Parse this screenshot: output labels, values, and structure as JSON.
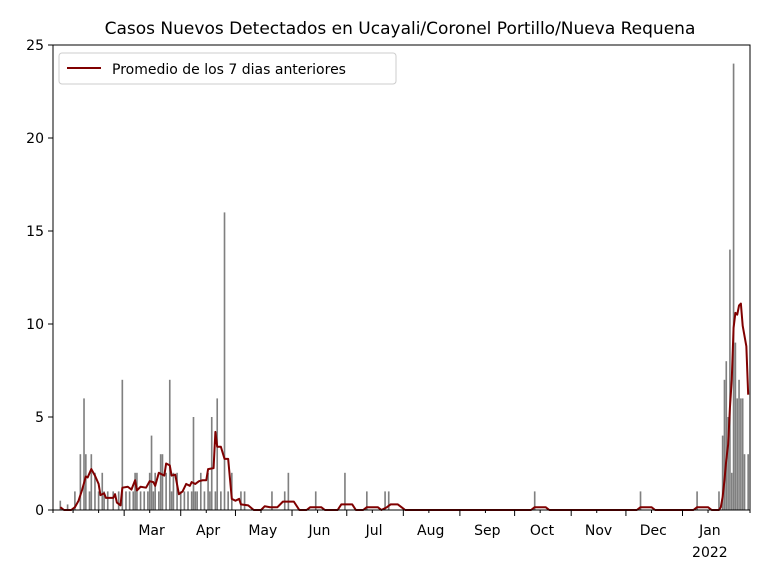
{
  "chart_data": {
    "type": "bar",
    "title": "Casos Nuevos Detectados en Ucayali/Coronel Portillo/Nueva Requena",
    "xlabel": "",
    "ylabel": "",
    "ylim": [
      0,
      25
    ],
    "yticks": [
      0,
      5,
      10,
      15,
      20,
      25
    ],
    "xlim": [
      "2021-01-21",
      "2022-02-07"
    ],
    "month_ticks": [
      {
        "date": "2021-03-01",
        "label": "Mar",
        "sublabel": ""
      },
      {
        "date": "2021-04-01",
        "label": "Apr",
        "sublabel": ""
      },
      {
        "date": "2021-05-01",
        "label": "May",
        "sublabel": ""
      },
      {
        "date": "2021-06-01",
        "label": "Jun",
        "sublabel": ""
      },
      {
        "date": "2021-07-01",
        "label": "Jul",
        "sublabel": ""
      },
      {
        "date": "2021-08-01",
        "label": "Aug",
        "sublabel": ""
      },
      {
        "date": "2021-09-01",
        "label": "Sep",
        "sublabel": ""
      },
      {
        "date": "2021-10-01",
        "label": "Oct",
        "sublabel": ""
      },
      {
        "date": "2021-11-01",
        "label": "Nov",
        "sublabel": ""
      },
      {
        "date": "2021-12-01",
        "label": "Dec",
        "sublabel": ""
      },
      {
        "date": "2022-01-01",
        "label": "Jan",
        "sublabel": "2022"
      }
    ],
    "minor_ticks": [
      "2021-01-21",
      "2021-02-01",
      "2021-02-15",
      "2021-03-15",
      "2021-04-15",
      "2021-05-15",
      "2021-06-15",
      "2021-07-15",
      "2021-08-15",
      "2021-09-15",
      "2021-10-15",
      "2021-11-15",
      "2021-12-15",
      "2022-01-15",
      "2022-02-07"
    ],
    "bar_series": {
      "name": "",
      "color": "#808080",
      "points": [
        [
          "2021-01-25",
          0.5
        ],
        [
          "2021-01-29",
          0.3
        ],
        [
          "2021-02-02",
          1
        ],
        [
          "2021-02-05",
          3
        ],
        [
          "2021-02-07",
          6
        ],
        [
          "2021-02-08",
          3
        ],
        [
          "2021-02-10",
          1
        ],
        [
          "2021-02-11",
          3
        ],
        [
          "2021-02-13",
          2
        ],
        [
          "2021-02-15",
          1
        ],
        [
          "2021-02-17",
          2
        ],
        [
          "2021-02-18",
          1
        ],
        [
          "2021-02-20",
          1
        ],
        [
          "2021-02-23",
          1
        ],
        [
          "2021-02-26",
          1
        ],
        [
          "2021-02-28",
          7
        ],
        [
          "2021-03-02",
          1
        ],
        [
          "2021-03-04",
          1
        ],
        [
          "2021-03-06",
          1
        ],
        [
          "2021-03-07",
          2
        ],
        [
          "2021-03-08",
          2
        ],
        [
          "2021-03-10",
          1
        ],
        [
          "2021-03-12",
          1
        ],
        [
          "2021-03-14",
          1
        ],
        [
          "2021-03-15",
          2
        ],
        [
          "2021-03-16",
          4
        ],
        [
          "2021-03-17",
          1
        ],
        [
          "2021-03-18",
          2
        ],
        [
          "2021-03-20",
          1
        ],
        [
          "2021-03-21",
          3
        ],
        [
          "2021-03-22",
          3
        ],
        [
          "2021-03-24",
          2
        ],
        [
          "2021-03-26",
          7
        ],
        [
          "2021-03-27",
          1
        ],
        [
          "2021-03-28",
          2
        ],
        [
          "2021-03-30",
          2
        ],
        [
          "2021-04-01",
          1
        ],
        [
          "2021-04-03",
          1
        ],
        [
          "2021-04-05",
          1
        ],
        [
          "2021-04-07",
          1
        ],
        [
          "2021-04-08",
          5
        ],
        [
          "2021-04-09",
          1
        ],
        [
          "2021-04-10",
          1
        ],
        [
          "2021-04-12",
          2
        ],
        [
          "2021-04-14",
          1
        ],
        [
          "2021-04-16",
          2
        ],
        [
          "2021-04-17",
          1
        ],
        [
          "2021-04-18",
          5
        ],
        [
          "2021-04-20",
          1
        ],
        [
          "2021-04-21",
          6
        ],
        [
          "2021-04-23",
          1
        ],
        [
          "2021-04-25",
          16
        ],
        [
          "2021-04-27",
          1
        ],
        [
          "2021-04-29",
          2
        ],
        [
          "2021-05-04",
          1
        ],
        [
          "2021-05-06",
          1
        ],
        [
          "2021-05-21",
          1
        ],
        [
          "2021-05-28",
          1
        ],
        [
          "2021-05-30",
          2
        ],
        [
          "2021-06-14",
          1
        ],
        [
          "2021-06-30",
          2
        ],
        [
          "2021-07-12",
          1
        ],
        [
          "2021-07-22",
          1
        ],
        [
          "2021-07-24",
          1
        ],
        [
          "2021-10-12",
          1
        ],
        [
          "2021-12-09",
          1
        ],
        [
          "2022-01-09",
          1
        ],
        [
          "2022-01-21",
          1
        ],
        [
          "2022-01-23",
          4
        ],
        [
          "2022-01-24",
          7
        ],
        [
          "2022-01-25",
          8
        ],
        [
          "2022-01-26",
          5
        ],
        [
          "2022-01-27",
          14
        ],
        [
          "2022-01-28",
          2
        ],
        [
          "2022-01-29",
          24
        ],
        [
          "2022-01-30",
          9
        ],
        [
          "2022-01-31",
          6
        ],
        [
          "2022-02-01",
          7
        ],
        [
          "2022-02-02",
          6
        ],
        [
          "2022-02-03",
          6
        ],
        [
          "2022-02-04",
          3
        ],
        [
          "2022-02-06",
          3
        ]
      ]
    },
    "line_series": {
      "name": "Promedio de los 7 dias anteriores",
      "color": "#800000",
      "points": [
        [
          "2021-01-25",
          0.15
        ],
        [
          "2021-01-27",
          0.0
        ],
        [
          "2021-01-31",
          0.0
        ],
        [
          "2021-02-02",
          0.15
        ],
        [
          "2021-02-04",
          0.5
        ],
        [
          "2021-02-06",
          1.1
        ],
        [
          "2021-02-08",
          1.8
        ],
        [
          "2021-02-09",
          1.75
        ],
        [
          "2021-02-11",
          2.2
        ],
        [
          "2021-02-13",
          1.85
        ],
        [
          "2021-02-15",
          1.4
        ],
        [
          "2021-02-16",
          0.8
        ],
        [
          "2021-02-18",
          0.9
        ],
        [
          "2021-02-19",
          0.65
        ],
        [
          "2021-02-23",
          0.65
        ],
        [
          "2021-02-24",
          0.85
        ],
        [
          "2021-02-25",
          0.4
        ],
        [
          "2021-02-27",
          0.25
        ],
        [
          "2021-02-28",
          1.2
        ],
        [
          "2021-03-03",
          1.25
        ],
        [
          "2021-03-05",
          1.1
        ],
        [
          "2021-03-07",
          1.6
        ],
        [
          "2021-03-08",
          1.05
        ],
        [
          "2021-03-10",
          1.25
        ],
        [
          "2021-03-13",
          1.2
        ],
        [
          "2021-03-15",
          1.55
        ],
        [
          "2021-03-17",
          1.5
        ],
        [
          "2021-03-18",
          1.3
        ],
        [
          "2021-03-20",
          2.0
        ],
        [
          "2021-03-23",
          1.85
        ],
        [
          "2021-03-24",
          2.5
        ],
        [
          "2021-03-26",
          2.4
        ],
        [
          "2021-03-27",
          1.85
        ],
        [
          "2021-03-29",
          1.9
        ],
        [
          "2021-03-31",
          0.85
        ],
        [
          "2021-04-02",
          1.0
        ],
        [
          "2021-04-04",
          1.4
        ],
        [
          "2021-04-06",
          1.3
        ],
        [
          "2021-04-07",
          1.5
        ],
        [
          "2021-04-09",
          1.4
        ],
        [
          "2021-04-11",
          1.55
        ],
        [
          "2021-04-13",
          1.6
        ],
        [
          "2021-04-15",
          1.6
        ],
        [
          "2021-04-16",
          2.2
        ],
        [
          "2021-04-19",
          2.25
        ],
        [
          "2021-04-20",
          4.2
        ],
        [
          "2021-04-21",
          3.4
        ],
        [
          "2021-04-23",
          3.4
        ],
        [
          "2021-04-25",
          2.75
        ],
        [
          "2021-04-27",
          2.75
        ],
        [
          "2021-04-29",
          0.6
        ],
        [
          "2021-05-01",
          0.5
        ],
        [
          "2021-05-03",
          0.6
        ],
        [
          "2021-05-04",
          0.3
        ],
        [
          "2021-05-08",
          0.25
        ],
        [
          "2021-05-11",
          0.0
        ],
        [
          "2021-05-15",
          0.0
        ],
        [
          "2021-05-17",
          0.2
        ],
        [
          "2021-05-20",
          0.15
        ],
        [
          "2021-05-24",
          0.15
        ],
        [
          "2021-05-27",
          0.45
        ],
        [
          "2021-06-02",
          0.45
        ],
        [
          "2021-06-05",
          0.0
        ],
        [
          "2021-06-09",
          0.0
        ],
        [
          "2021-06-11",
          0.15
        ],
        [
          "2021-06-17",
          0.15
        ],
        [
          "2021-06-19",
          0.0
        ],
        [
          "2021-06-26",
          0.0
        ],
        [
          "2021-06-28",
          0.3
        ],
        [
          "2021-07-04",
          0.3
        ],
        [
          "2021-07-06",
          0.0
        ],
        [
          "2021-07-10",
          0.0
        ],
        [
          "2021-07-12",
          0.15
        ],
        [
          "2021-07-18",
          0.15
        ],
        [
          "2021-07-20",
          0.0
        ],
        [
          "2021-07-23",
          0.15
        ],
        [
          "2021-07-25",
          0.3
        ],
        [
          "2021-07-29",
          0.3
        ],
        [
          "2021-07-31",
          0.15
        ],
        [
          "2021-08-02",
          0.0
        ],
        [
          "2021-10-10",
          0.0
        ],
        [
          "2021-10-12",
          0.15
        ],
        [
          "2021-10-18",
          0.15
        ],
        [
          "2021-10-20",
          0.0
        ],
        [
          "2021-12-07",
          0.0
        ],
        [
          "2021-12-09",
          0.15
        ],
        [
          "2021-12-15",
          0.15
        ],
        [
          "2021-12-17",
          0.0
        ],
        [
          "2022-01-07",
          0.0
        ],
        [
          "2022-01-09",
          0.15
        ],
        [
          "2022-01-15",
          0.15
        ],
        [
          "2022-01-17",
          0.0
        ],
        [
          "2022-01-21",
          0.0
        ],
        [
          "2022-01-22",
          0.15
        ],
        [
          "2022-01-23",
          0.7
        ],
        [
          "2022-01-24",
          1.6
        ],
        [
          "2022-01-25",
          2.7
        ],
        [
          "2022-01-26",
          3.5
        ],
        [
          "2022-01-27",
          5.5
        ],
        [
          "2022-01-28",
          7.0
        ],
        [
          "2022-01-29",
          9.8
        ],
        [
          "2022-01-30",
          10.6
        ],
        [
          "2022-01-31",
          10.5
        ],
        [
          "2022-02-01",
          11.0
        ],
        [
          "2022-02-02",
          11.1
        ],
        [
          "2022-02-03",
          9.9
        ],
        [
          "2022-02-05",
          8.8
        ],
        [
          "2022-02-06",
          6.2
        ]
      ]
    },
    "legend": {
      "placement": "top-left"
    },
    "grid": false
  }
}
